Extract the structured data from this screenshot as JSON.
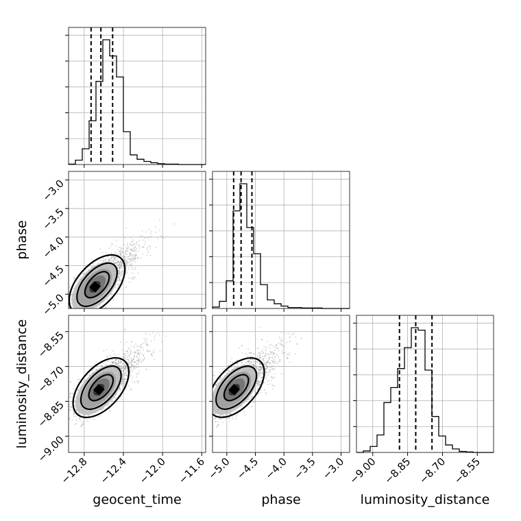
{
  "chart_data": {
    "type": "corner",
    "parameters": [
      {
        "name": "geocent_time",
        "range": [
          -12.96,
          -11.56
        ],
        "ticks": [
          -12.8,
          -12.4,
          -12.0,
          -11.6
        ],
        "tick_labels": [
          "−12.8",
          "−12.4",
          "−12.0",
          "−11.6"
        ]
      },
      {
        "name": "phase",
        "range": [
          -5.25,
          -2.85
        ],
        "ticks": [
          -5.0,
          -4.5,
          -4.0,
          -3.5,
          -3.0
        ],
        "tick_labels": [
          "−5.0",
          "−4.5",
          "−4.0",
          "−3.5",
          "−3.0"
        ]
      },
      {
        "name": "luminosity_distance",
        "range": [
          -9.07,
          -8.48
        ],
        "ticks": [
          -9.0,
          -8.85,
          -8.7,
          -8.55
        ],
        "tick_labels": [
          "−9.00",
          "−8.85",
          "−8.70",
          "−8.55"
        ]
      }
    ],
    "histograms": [
      {
        "parameter": "geocent_time",
        "bin_edges": [
          -12.96,
          -12.89,
          -12.82,
          -12.75,
          -12.68,
          -12.61,
          -12.54,
          -12.47,
          -12.4,
          -12.33,
          -12.26,
          -12.19,
          -12.12,
          -12.05,
          -11.98,
          -11.91,
          -11.84,
          -11.77,
          -11.7,
          -11.63,
          -11.56
        ],
        "counts": [
          1,
          10,
          36,
          100,
          190,
          285,
          248,
          200,
          75,
          22,
          12,
          7,
          4,
          2,
          1,
          1,
          0,
          0,
          0,
          0
        ],
        "quantiles": [
          -12.73,
          -12.63,
          -12.51
        ]
      },
      {
        "parameter": "phase",
        "bin_edges": [
          -5.25,
          -5.13,
          -5.01,
          -4.89,
          -4.77,
          -4.65,
          -4.53,
          -4.41,
          -4.29,
          -4.17,
          -4.05,
          -3.93,
          -3.81,
          -3.69,
          -3.57,
          -3.45,
          -3.33,
          -3.21,
          -3.09,
          -2.97,
          -2.85
        ],
        "counts": [
          3,
          15,
          58,
          205,
          262,
          170,
          115,
          50,
          18,
          10,
          5,
          2,
          2,
          1,
          1,
          1,
          0,
          0,
          0,
          0
        ],
        "quantiles": [
          -4.88,
          -4.75,
          -4.56
        ]
      },
      {
        "parameter": "luminosity_distance",
        "bin_edges": [
          -9.07,
          -9.0405,
          -9.011,
          -8.9815,
          -8.952,
          -8.9225,
          -8.893,
          -8.8635,
          -8.834,
          -8.8045,
          -8.775,
          -8.7455,
          -8.716,
          -8.6865,
          -8.657,
          -8.6275,
          -8.598,
          -8.5685,
          -8.539,
          -8.5095,
          -8.48
        ],
        "counts": [
          0,
          3,
          12,
          35,
          100,
          130,
          168,
          210,
          250,
          245,
          165,
          72,
          33,
          15,
          7,
          2,
          1,
          0,
          0,
          0
        ],
        "quantiles": [
          -8.885,
          -8.815,
          -8.745
        ]
      }
    ],
    "joint": [
      {
        "x": "geocent_time",
        "y": "phase",
        "mode": [
          -12.69,
          -4.87
        ],
        "correlation": 0.72
      },
      {
        "x": "geocent_time",
        "y": "luminosity_distance",
        "mode": [
          -12.65,
          -8.8
        ],
        "correlation": 0.7
      },
      {
        "x": "phase",
        "y": "luminosity_distance",
        "mode": [
          -4.87,
          -8.8
        ],
        "correlation": 0.62
      }
    ],
    "grid": true
  }
}
